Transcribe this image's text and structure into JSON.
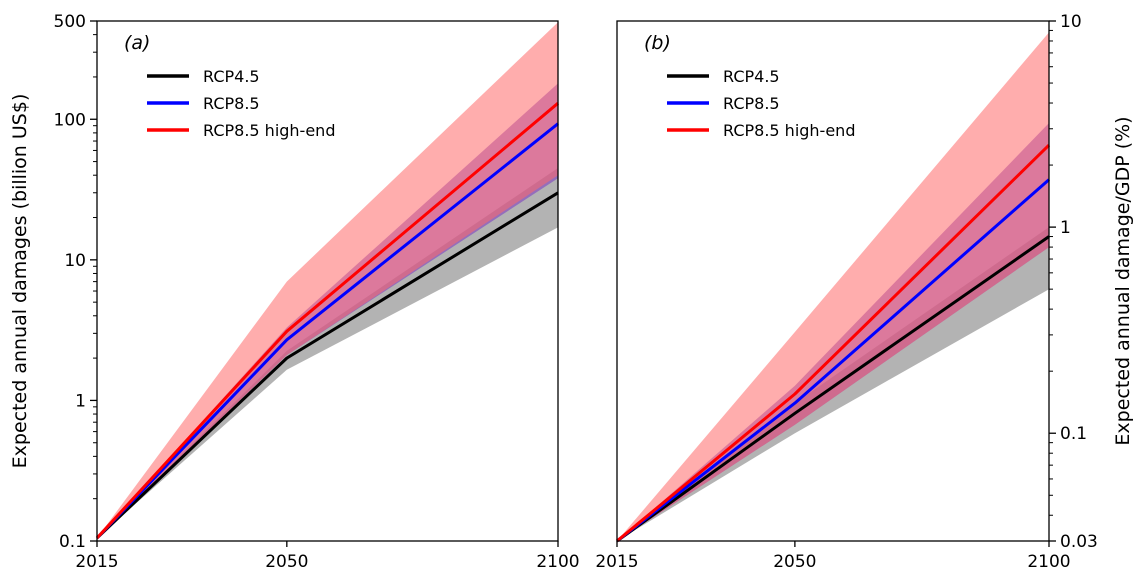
{
  "chart_data": [
    {
      "type": "line",
      "panel_label": "(a)",
      "ylabel": "Expected annual damages (billion US$)",
      "xlabel": "",
      "yscale": "log",
      "ylim": [
        0.1,
        500
      ],
      "xlim": [
        2015,
        2100
      ],
      "x": [
        2015,
        2050,
        2100
      ],
      "xticks": [
        2015,
        2050,
        2100
      ],
      "yticks": [
        0.1,
        1,
        10,
        100,
        500
      ],
      "ytick_labels": [
        "0.1",
        "1",
        "10",
        "100",
        "500"
      ],
      "legend_position": "upper-left",
      "series": [
        {
          "name": "RCP4.5",
          "color": "#000000",
          "band_color": "#808080",
          "values": [
            0.105,
            2.0,
            30
          ],
          "low": [
            0.105,
            1.65,
            17
          ],
          "high": [
            0.105,
            2.25,
            45
          ]
        },
        {
          "name": "RCP8.5",
          "color": "#0000ff",
          "band_color": "#7f3fbf",
          "values": [
            0.105,
            2.7,
            93
          ],
          "low": [
            0.105,
            2.1,
            38
          ],
          "high": [
            0.105,
            3.3,
            180
          ]
        },
        {
          "name": "RCP8.5 high-end",
          "color": "#ff0000",
          "band_color": "#ff6a6a",
          "values": [
            0.105,
            3.1,
            130
          ],
          "low": [
            0.105,
            2.1,
            40
          ],
          "high": [
            0.105,
            7.0,
            490
          ]
        }
      ]
    },
    {
      "type": "line",
      "panel_label": "(b)",
      "ylabel": "Expected annual damage/GDP (%)",
      "xlabel": "",
      "yscale": "log",
      "ylim": [
        0.03,
        10
      ],
      "xlim": [
        2015,
        2100
      ],
      "x": [
        2015,
        2050,
        2100
      ],
      "xticks": [
        2015,
        2050,
        2100
      ],
      "yticks": [
        0.03,
        0.1,
        1,
        10
      ],
      "ytick_labels": [
        "0.03",
        "0.1",
        "1",
        "10"
      ],
      "legend_position": "upper-left",
      "series": [
        {
          "name": "RCP4.5",
          "color": "#000000",
          "band_color": "#808080",
          "values": [
            0.03,
            0.125,
            0.9
          ],
          "low": [
            0.03,
            0.1,
            0.5
          ],
          "high": [
            0.03,
            0.14,
            1.0
          ]
        },
        {
          "name": "RCP8.5",
          "color": "#0000ff",
          "band_color": "#7f3fbf",
          "values": [
            0.03,
            0.14,
            1.7
          ],
          "low": [
            0.03,
            0.11,
            0.8
          ],
          "high": [
            0.03,
            0.17,
            3.2
          ]
        },
        {
          "name": "RCP8.5 high-end",
          "color": "#ff0000",
          "band_color": "#ff6a6a",
          "values": [
            0.03,
            0.155,
            2.5
          ],
          "low": [
            0.03,
            0.11,
            0.8
          ],
          "high": [
            0.03,
            0.31,
            8.8
          ]
        }
      ]
    }
  ]
}
